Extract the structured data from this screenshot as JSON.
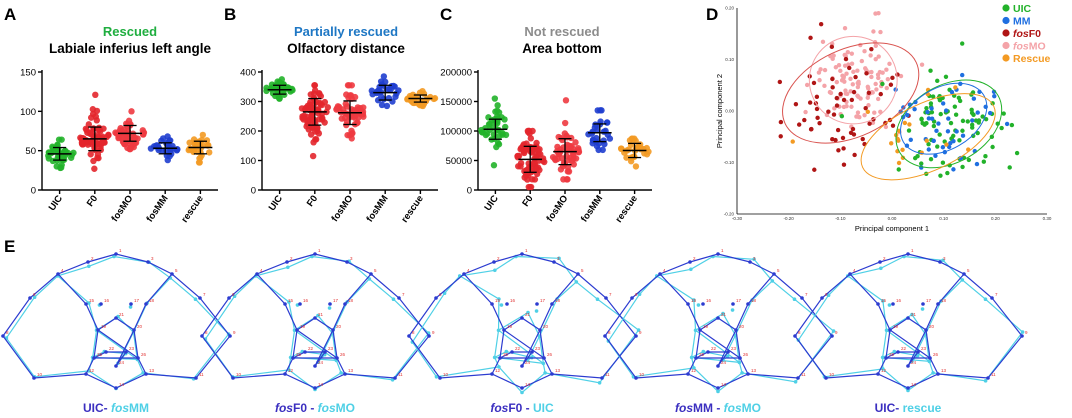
{
  "panels": [
    {
      "letter": "A",
      "status": "Rescued",
      "status_color": "#1fae3f",
      "title": "Labiale inferius left angle",
      "yticks": [
        "0",
        "50",
        "100",
        "150"
      ],
      "ymax": 150,
      "groups": [
        {
          "label": "UIC",
          "color": "#22b22a",
          "mean": 46,
          "sd": 8,
          "lo": 28,
          "hi": 64,
          "n": 40
        },
        {
          "label": "F0",
          "color": "#e3262c",
          "mean": 65,
          "sd": 15,
          "lo": 27,
          "hi": 121,
          "n": 70
        },
        {
          "label": "fosMO",
          "color": "#ee3a40",
          "mean": 72,
          "sd": 10,
          "lo": 52,
          "hi": 100,
          "n": 55
        },
        {
          "label": "fosMM",
          "color": "#1f3ecf",
          "mean": 53,
          "sd": 7,
          "lo": 38,
          "hi": 68,
          "n": 28
        },
        {
          "label": "rescue",
          "color": "#f39a23",
          "mean": 54,
          "sd": 8,
          "lo": 35,
          "hi": 70,
          "n": 30
        }
      ]
    },
    {
      "letter": "B",
      "status": "Partially rescued",
      "status_color": "#1e77c4",
      "title": "Olfactory distance",
      "yticks": [
        "0",
        "100",
        "200",
        "300",
        "400"
      ],
      "ymax": 400,
      "groups": [
        {
          "label": "UIC",
          "color": "#22b22a",
          "mean": 340,
          "sd": 15,
          "lo": 310,
          "hi": 375,
          "n": 40
        },
        {
          "label": "F0",
          "color": "#e3262c",
          "mean": 265,
          "sd": 45,
          "lo": 115,
          "hi": 355,
          "n": 70
        },
        {
          "label": "fosMO",
          "color": "#ee3a40",
          "mean": 262,
          "sd": 40,
          "lo": 175,
          "hi": 355,
          "n": 55
        },
        {
          "label": "fosMM",
          "color": "#1f3ecf",
          "mean": 330,
          "sd": 25,
          "lo": 285,
          "hi": 385,
          "n": 28
        },
        {
          "label": "rescue",
          "color": "#f39a23",
          "mean": 310,
          "sd": 12,
          "lo": 285,
          "hi": 335,
          "n": 30
        }
      ]
    },
    {
      "letter": "C",
      "status": "Not rescued",
      "status_color": "#8c8c8c",
      "title": "Area bottom",
      "yticks": [
        "0",
        "50000",
        "100000",
        "150000",
        "200000"
      ],
      "ymax": 200000,
      "groups": [
        {
          "label": "UIC",
          "color": "#22b22a",
          "mean": 103000,
          "sd": 17000,
          "lo": 42000,
          "hi": 155000,
          "n": 40
        },
        {
          "label": "F0",
          "color": "#e3262c",
          "mean": 52000,
          "sd": 22000,
          "lo": 5000,
          "hi": 100000,
          "n": 70
        },
        {
          "label": "fosMO",
          "color": "#ee3a40",
          "mean": 65000,
          "sd": 22000,
          "lo": 18000,
          "hi": 152000,
          "n": 55
        },
        {
          "label": "fosMM",
          "color": "#1f3ecf",
          "mean": 97000,
          "sd": 15000,
          "lo": 68000,
          "hi": 135000,
          "n": 28
        },
        {
          "label": "rescue",
          "color": "#f39a23",
          "mean": 67000,
          "sd": 12000,
          "lo": 40000,
          "hi": 87000,
          "n": 30
        }
      ]
    }
  ],
  "pca": {
    "letter": "D",
    "xlabel": "Principal component 1",
    "ylabel": "Principal component 2",
    "xticks": [
      "-0.30",
      "-0.20",
      "-0.10",
      "0.00",
      "0.10",
      "0.20",
      "0.30"
    ],
    "yticks": [
      "0.20",
      "0.10",
      "0.00",
      "-0.10",
      "-0.20"
    ],
    "legend": [
      {
        "prefix": "",
        "ital": "",
        "suffix": "UIC",
        "color": "#22b22a"
      },
      {
        "prefix": "",
        "ital": "",
        "suffix": "MM",
        "color": "#1f6fe0"
      },
      {
        "prefix": "",
        "ital": "fos",
        "suffix": "F0",
        "color": "#b01515"
      },
      {
        "prefix": "",
        "ital": "fos",
        "suffix": "MO",
        "color": "#f4a3a8"
      },
      {
        "prefix": "",
        "ital": "",
        "suffix": "Rescue",
        "color": "#f39a23"
      }
    ],
    "clusters": [
      {
        "name": "fosMO",
        "color": "#f4a3a8",
        "cx": -0.07,
        "cy": 0.06,
        "sx": 0.045,
        "sy": 0.05,
        "n": 110
      },
      {
        "name": "fosF0",
        "color": "#b01515",
        "cx": -0.09,
        "cy": 0.02,
        "sx": 0.06,
        "sy": 0.06,
        "n": 60
      },
      {
        "name": "UIC",
        "color": "#22b22a",
        "cx": 0.11,
        "cy": -0.03,
        "sx": 0.05,
        "sy": 0.05,
        "n": 90
      },
      {
        "name": "MM",
        "color": "#1f6fe0",
        "cx": 0.1,
        "cy": -0.02,
        "sx": 0.05,
        "sy": 0.045,
        "n": 50
      },
      {
        "name": "Rescue",
        "color": "#f39a23",
        "cx": 0.03,
        "cy": -0.05,
        "sx": 0.05,
        "sy": 0.04,
        "n": 20
      }
    ],
    "ellipses": [
      {
        "color": "#f4a3a8",
        "cx": -0.075,
        "cy": 0.06,
        "rx": 0.085,
        "ry": 0.085,
        "rot": 0
      },
      {
        "color": "#d9534f",
        "cx": -0.08,
        "cy": 0.035,
        "rx": 0.14,
        "ry": 0.085,
        "rot": -25
      },
      {
        "color": "#22b22a",
        "cx": 0.11,
        "cy": -0.025,
        "rx": 0.11,
        "ry": 0.075,
        "rot": -30
      },
      {
        "color": "#1f6fe0",
        "cx": 0.1,
        "cy": -0.015,
        "rx": 0.09,
        "ry": 0.06,
        "rot": -30
      },
      {
        "color": "#f39a23",
        "cx": 0.07,
        "cy": -0.05,
        "rx": 0.14,
        "ry": 0.065,
        "rot": -25
      }
    ]
  },
  "panelE": {
    "letter": "E",
    "captions": [
      {
        "a_ital": "",
        "a": "UIC- ",
        "a_color": "#3b2fc0",
        "b_ital": "fos",
        "b": "MM",
        "b_color": "#4fd0e6"
      },
      {
        "a_ital": "fos",
        "a": "F0 - ",
        "a_color": "#3b2fc0",
        "b_ital": "fos",
        "b": "MO",
        "b_color": "#4fd0e6"
      },
      {
        "a_ital": "fos",
        "a": "F0 - ",
        "a_color": "#3b2fc0",
        "b_ital": "",
        "b": "UIC",
        "b_color": "#4fd0e6"
      },
      {
        "a_ital": "fos",
        "a": "MM - ",
        "a_color": "#3b2fc0",
        "b_ital": "fos",
        "b": "MO",
        "b_color": "#4fd0e6"
      },
      {
        "a_ital": "",
        "a": "UIC- ",
        "a_color": "#3b2fc0",
        "b_ital": "",
        "b": "rescue",
        "b_color": "#4fd0e6"
      }
    ],
    "landmark_labels": [
      "1",
      "2",
      "3",
      "4",
      "5",
      "6",
      "7",
      "8",
      "9",
      "10",
      "11",
      "12",
      "13",
      "14",
      "15",
      "16",
      "17",
      "18",
      "19",
      "20",
      "21",
      "22",
      "23",
      "24",
      "25",
      "26"
    ]
  }
}
